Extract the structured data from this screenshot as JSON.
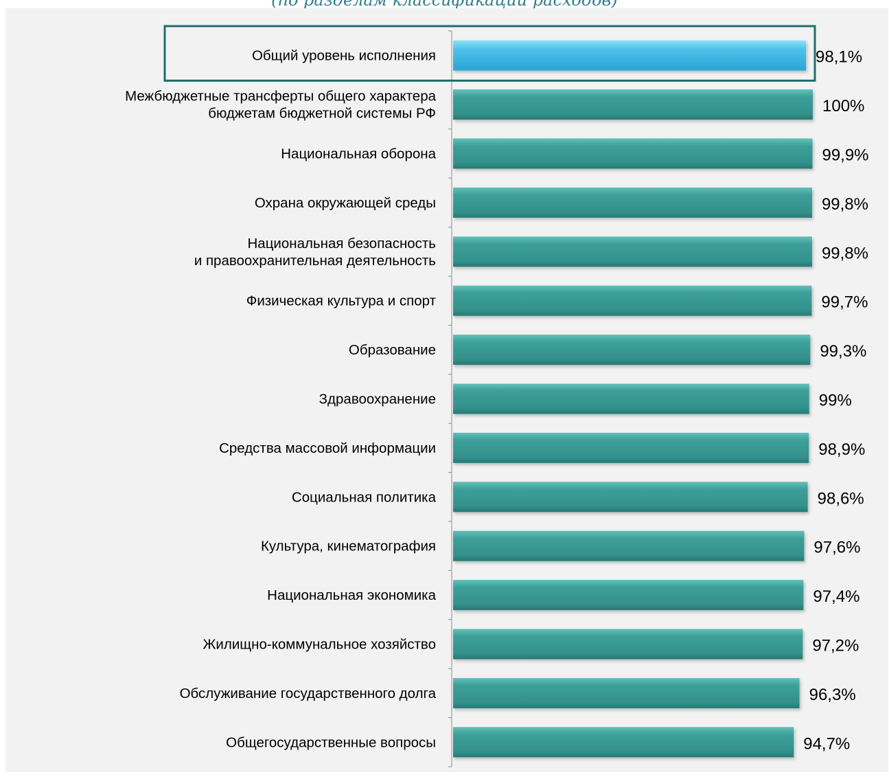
{
  "chart_data": {
    "type": "bar",
    "orientation": "horizontal",
    "title": "(по разделам классификации расходов)",
    "categories": [
      [
        "Общий уровень исполнения"
      ],
      [
        "Межбюджетные трансферты общего характера",
        "бюджетам бюджетной системы РФ"
      ],
      [
        "Национальная оборона"
      ],
      [
        "Охрана окружающей среды"
      ],
      [
        "Национальная безопасность",
        "и правоохранительная деятельность"
      ],
      [
        "Физическая культура и спорт"
      ],
      [
        "Образование"
      ],
      [
        "Здравоохранение"
      ],
      [
        "Средства массовой информации"
      ],
      [
        "Социальная политика"
      ],
      [
        "Культура, кинематография"
      ],
      [
        "Национальная экономика"
      ],
      [
        "Жилищно-коммунальное хозяйство"
      ],
      [
        "Обслуживание государственного долга"
      ],
      [
        "Общегосударственные вопросы"
      ]
    ],
    "values": [
      98.1,
      100,
      99.9,
      99.8,
      99.8,
      99.7,
      99.3,
      99,
      98.9,
      98.6,
      97.6,
      97.4,
      97.2,
      96.3,
      94.7
    ],
    "value_labels": [
      "98,1%",
      "100%",
      "99,9%",
      "99,8%",
      "99,8%",
      "99,7%",
      "99,3%",
      "99%",
      "98,9%",
      "98,6%",
      "97,6%",
      "97,4%",
      "97,2%",
      "96,3%",
      "94,7%"
    ],
    "highlight_index": 0,
    "xlim": [
      0,
      100
    ],
    "grid": false,
    "legend": "none",
    "colors": {
      "highlight_bar": "#3fb3e0",
      "highlight_bar_light": "#7fd6f2",
      "bar": "#379893",
      "bar_light": "#5bb8b2",
      "bar_dark": "#237571",
      "highlight_box": "#1f6e6a",
      "axis": "#8c8c8c",
      "plot_background": "#f2f2f2",
      "title": "#2f7d8e"
    }
  }
}
